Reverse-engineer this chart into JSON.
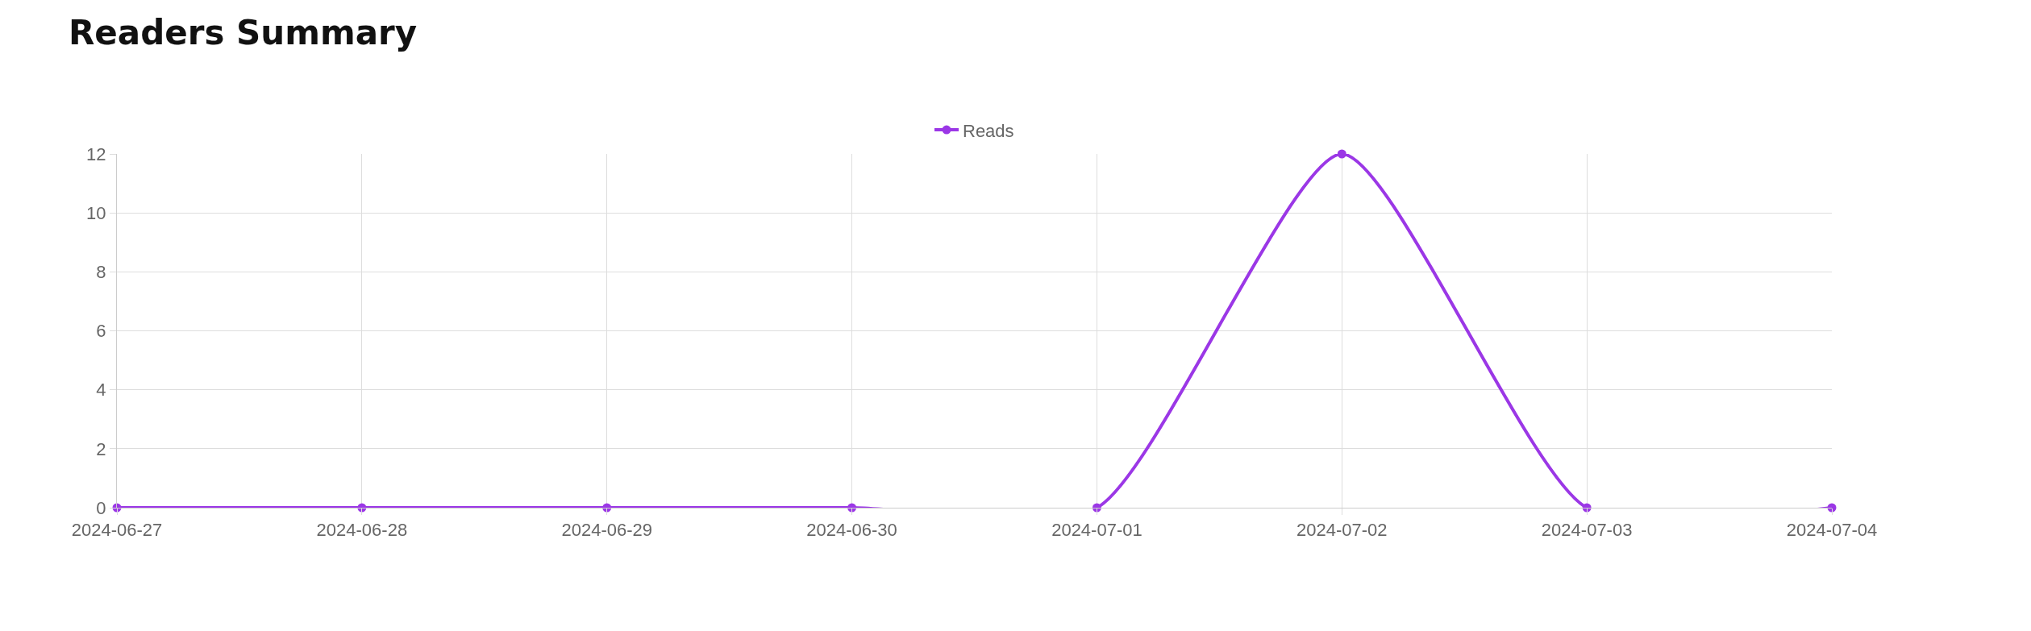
{
  "chart_data": {
    "type": "line",
    "title": "Readers Summary",
    "x": [
      "2024-06-27",
      "2024-06-28",
      "2024-06-29",
      "2024-06-30",
      "2024-07-01",
      "2024-07-02",
      "2024-07-03",
      "2024-07-04"
    ],
    "series": [
      {
        "name": "Reads",
        "color": "#9b37e6",
        "values": [
          0,
          0,
          0,
          0,
          0,
          12,
          0,
          0
        ]
      }
    ],
    "xlim": [
      "2024-06-27",
      "2024-07-04"
    ],
    "xticks": [
      "2024-06-27",
      "2024-06-28",
      "2024-06-29",
      "2024-06-30",
      "2024-07-01",
      "2024-07-02",
      "2024-07-03",
      "2024-07-04"
    ],
    "ylim": [
      0,
      12
    ],
    "yticks": [
      0,
      2,
      4,
      6,
      8,
      10,
      12
    ],
    "grid": true,
    "legend": "top",
    "marker": "circle",
    "line_style": "solid"
  }
}
